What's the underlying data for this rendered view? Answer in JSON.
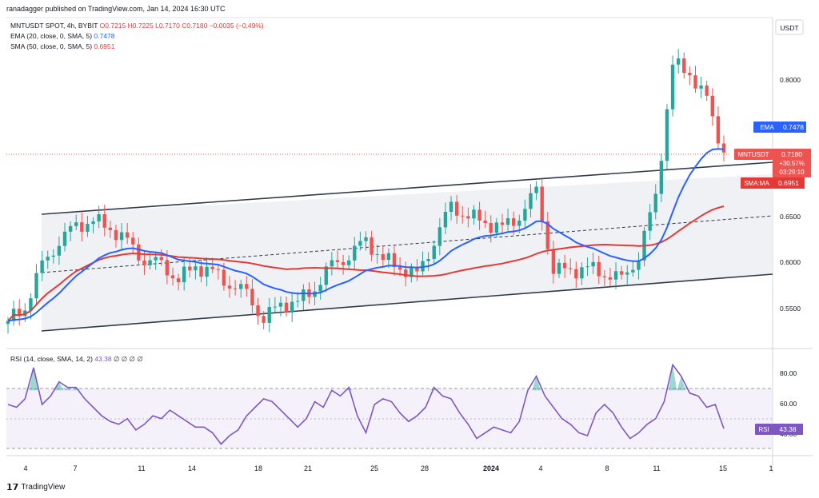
{
  "header": {
    "published_line": "ranadagger published on TradingView.com, Jan 14, 2024 16:30 UTC"
  },
  "legend": {
    "symbol_line": "MNTUSDT SPOT, 4h, BYBIT",
    "ohlc": "O0.7215 H0.7225 L0.7170 C0.7180 −0.0035 (−0.49%)",
    "ema_label": "EMA (20, close, 0, SMA, 5)",
    "ema_value": "0.7478",
    "sma_label": "SMA (50, close, 0, SMA, 5)",
    "sma_value": "0.6951",
    "rsi_label": "RSI (14, close, SMA, 14, 2)",
    "rsi_value": "43.38",
    "rsi_extra": "∅ ∅ ∅ ∅"
  },
  "footer": {
    "brand": "TradingView"
  },
  "colors": {
    "up": "#26a69a",
    "down": "#ef5350",
    "ema": "#2962ff",
    "sma": "#e53935",
    "rsi": "#7e57c2",
    "channel": "#2f3a4a"
  },
  "price_axis": {
    "currency": "USDT",
    "ticks": [
      "0.8000",
      "0.6500",
      "0.6000",
      "0.5500"
    ],
    "labels": [
      {
        "tag": "EMA",
        "value": "0.7478"
      },
      {
        "tag": "MNTUSDT",
        "value": "0.7180",
        "change": "+30.57%",
        "countdown": "03:29:10"
      },
      {
        "tag": "SMA:MA",
        "value": "0.6951"
      }
    ]
  },
  "rsi_axis": {
    "ticks": [
      "80.00",
      "60.00",
      "40.00"
    ],
    "label_tag": "RSI",
    "label_value": "43.38"
  },
  "time_axis": [
    "4",
    "7",
    "11",
    "14",
    "18",
    "21",
    "25",
    "28",
    "2024",
    "4",
    "8",
    "11",
    "15",
    "1"
  ],
  "chart_data": [
    {
      "type": "candlestick",
      "title": "MNTUSDT SPOT, 4h, BYBIT",
      "y_range": [
        0.52,
        0.85
      ],
      "series_names": [
        "EMA (20, close, 0, SMA, 5)",
        "SMA (50, close, 0, SMA, 5)"
      ],
      "close_points": [
        {
          "x": "Dec 3",
          "close": 0.545
        },
        {
          "x": "Dec 4",
          "close": 0.56
        },
        {
          "x": "Dec 5",
          "close": 0.6
        },
        {
          "x": "Dec 6",
          "close": 0.63
        },
        {
          "x": "Dec 7",
          "close": 0.64
        },
        {
          "x": "Dec 8",
          "close": 0.65
        },
        {
          "x": "Dec 9",
          "close": 0.64
        },
        {
          "x": "Dec 10",
          "close": 0.625
        },
        {
          "x": "Dec 11",
          "close": 0.61
        },
        {
          "x": "Dec 12",
          "close": 0.6
        },
        {
          "x": "Dec 13",
          "close": 0.59
        },
        {
          "x": "Dec 14",
          "close": 0.6
        },
        {
          "x": "Dec 15",
          "close": 0.595
        },
        {
          "x": "Dec 16",
          "close": 0.585
        },
        {
          "x": "Dec 17",
          "close": 0.57
        },
        {
          "x": "Dec 18",
          "close": 0.55
        },
        {
          "x": "Dec 19",
          "close": 0.56
        },
        {
          "x": "Dec 20",
          "close": 0.565
        },
        {
          "x": "Dec 21",
          "close": 0.58
        },
        {
          "x": "Dec 22",
          "close": 0.6
        },
        {
          "x": "Dec 23",
          "close": 0.615
        },
        {
          "x": "Dec 24",
          "close": 0.625
        },
        {
          "x": "Dec 25",
          "close": 0.61
        },
        {
          "x": "Dec 26",
          "close": 0.6
        },
        {
          "x": "Dec 27",
          "close": 0.59
        },
        {
          "x": "Dec 28",
          "close": 0.63
        },
        {
          "x": "Dec 29",
          "close": 0.66
        },
        {
          "x": "Dec 30",
          "close": 0.655
        },
        {
          "x": "Dec 31",
          "close": 0.645
        },
        {
          "x": "Jan 1",
          "close": 0.64
        },
        {
          "x": "Jan 2",
          "close": 0.655
        },
        {
          "x": "Jan 3",
          "close": 0.675
        },
        {
          "x": "Jan 4",
          "close": 0.6
        },
        {
          "x": "Jan 5",
          "close": 0.595
        },
        {
          "x": "Jan 6",
          "close": 0.6
        },
        {
          "x": "Jan 7",
          "close": 0.595
        },
        {
          "x": "Jan 8",
          "close": 0.585
        },
        {
          "x": "Jan 9",
          "close": 0.615
        },
        {
          "x": "Jan 10",
          "close": 0.67
        },
        {
          "x": "Jan 11",
          "close": 0.81
        },
        {
          "x": "Jan 12",
          "close": 0.8
        },
        {
          "x": "Jan 13",
          "close": 0.77
        },
        {
          "x": "Jan 14",
          "close": 0.718
        }
      ]
    },
    {
      "type": "line",
      "title": "RSI (14, close, SMA, 14, 2)",
      "y_range": [
        25,
        95
      ],
      "bands": [
        30,
        70
      ],
      "values": [
        60,
        58,
        64,
        86,
        60,
        66,
        76,
        72,
        72,
        64,
        58,
        52,
        48,
        46,
        50,
        42,
        46,
        52,
        50,
        56,
        52,
        48,
        44,
        44,
        40,
        32,
        38,
        42,
        52,
        58,
        64,
        62,
        56,
        50,
        44,
        50,
        62,
        58,
        70,
        66,
        72,
        52,
        40,
        60,
        64,
        62,
        54,
        48,
        52,
        58,
        72,
        66,
        64,
        54,
        46,
        36,
        40,
        44,
        42,
        40,
        48,
        70,
        80,
        66,
        58,
        50,
        46,
        40,
        38,
        54,
        60,
        54,
        44,
        36,
        40,
        46,
        50,
        62,
        88,
        80,
        68,
        66,
        58,
        60,
        43
      ]
    }
  ]
}
